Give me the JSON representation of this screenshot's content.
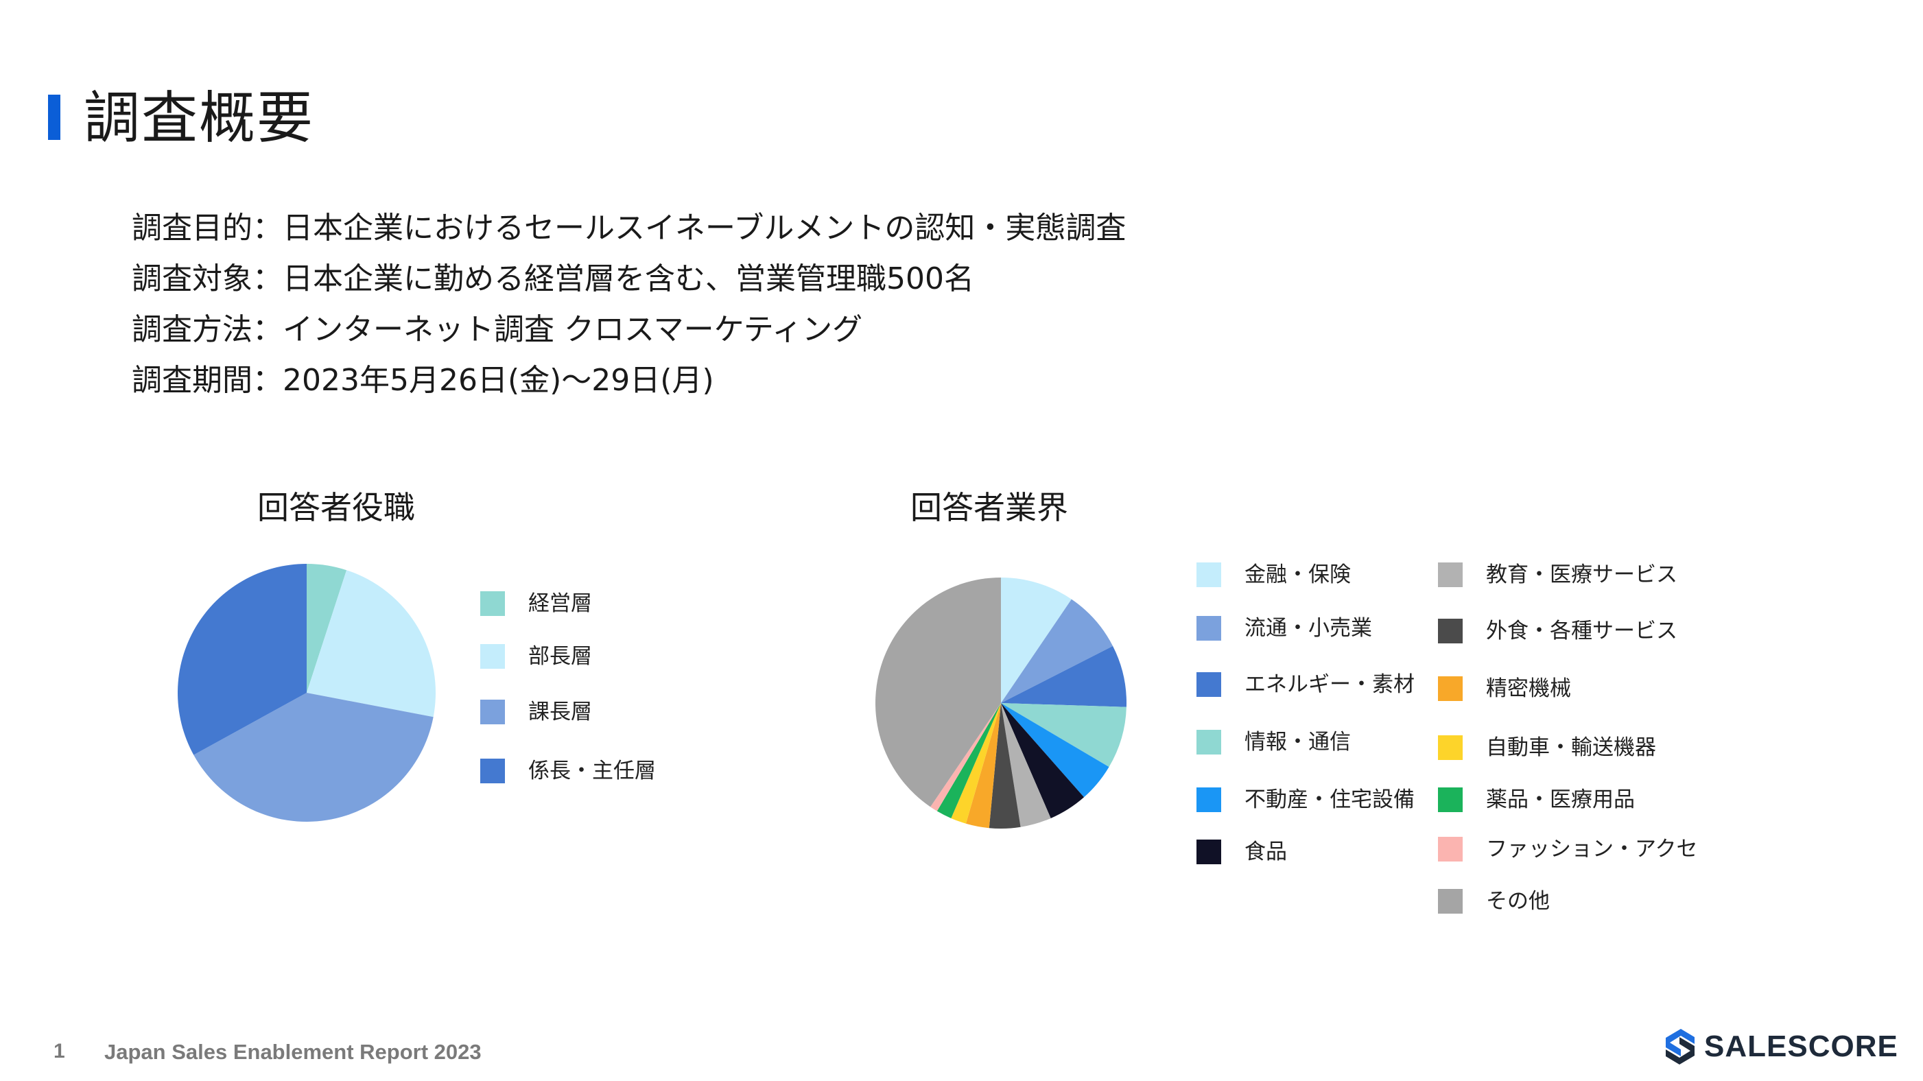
{
  "header": {
    "title": "調査概要"
  },
  "overview": {
    "lines": [
      "調査目的：日本企業におけるセールスイネーブルメントの認知・実態調査",
      "調査対象：日本企業に勤める経営層を含む、営業管理職500名",
      "調査方法：インターネット調査 クロスマーケティング",
      "調査期間：2023年5月26日(金)〜29日(月)"
    ]
  },
  "charts": {
    "position_title": "回答者役職",
    "industry_title": "回答者業界"
  },
  "chart_data": [
    {
      "type": "pie",
      "title": "回答者役職",
      "categories": [
        "経営層",
        "部長層",
        "課長層",
        "係長・主任層"
      ],
      "values": [
        5,
        23,
        39,
        33
      ],
      "colors": [
        "#8fd8d2",
        "#c4edfc",
        "#7ba1dd",
        "#4479d0"
      ],
      "legend_position": "right"
    },
    {
      "type": "pie",
      "title": "回答者業界",
      "categories": [
        "金融・保険",
        "流通・小売業",
        "エネルギー・素材",
        "情報・通信",
        "不動産・住宅設備",
        "食品",
        "教育・医療サービス",
        "外食・各種サービス",
        "精密機械",
        "自動車・輸送機器",
        "薬品・医療用品",
        "ファッション・アクセ",
        "その他"
      ],
      "values": [
        9.5,
        8,
        8,
        8,
        5,
        5,
        4,
        4,
        3,
        2,
        2,
        1,
        40.5
      ],
      "colors": [
        "#c4edfc",
        "#7ba1dd",
        "#4479d0",
        "#8fd8d2",
        "#1a96f5",
        "#101126",
        "#b2b2b2",
        "#4b4b4b",
        "#f8a829",
        "#fdd42a",
        "#1bb35b",
        "#fbb4b0",
        "#a5a5a5"
      ],
      "legend_position": "right"
    }
  ],
  "footer": {
    "page_number": "1",
    "report_title": "Japan Sales Enablement Report 2023",
    "logo_text": "SALESCORE"
  }
}
